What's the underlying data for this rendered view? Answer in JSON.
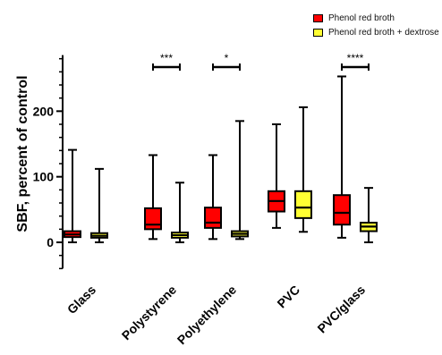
{
  "chart_data": {
    "type": "boxplot",
    "ylabel": "SBF, percent of control",
    "ylim": [
      -40,
      280
    ],
    "yticks": [
      0,
      100,
      200
    ],
    "ytick_labels": [
      "0",
      "100",
      "200"
    ],
    "categories": [
      "Glass",
      "Polystyrene",
      "Polyethylene",
      "PVC",
      "PVC/glass"
    ],
    "legend_position": "top-right",
    "series": [
      {
        "name": "Phenol red broth",
        "color": "#ff0000",
        "boxes": [
          {
            "min": 0,
            "q1": 8,
            "median": 12,
            "q3": 17,
            "max": 141
          },
          {
            "min": 5,
            "q1": 20,
            "median": 27,
            "q3": 52,
            "max": 133
          },
          {
            "min": 5,
            "q1": 22,
            "median": 30,
            "q3": 53,
            "max": 133
          },
          {
            "min": 22,
            "q1": 47,
            "median": 63,
            "q3": 78,
            "max": 180
          },
          {
            "min": 7,
            "q1": 27,
            "median": 45,
            "q3": 72,
            "max": 253
          }
        ]
      },
      {
        "name": "Phenol red broth + dextrose",
        "color": "#ffff33",
        "boxes": [
          {
            "min": 0,
            "q1": 7,
            "median": 10,
            "q3": 14,
            "max": 112
          },
          {
            "min": 0,
            "q1": 7,
            "median": 11,
            "q3": 15,
            "max": 91
          },
          {
            "min": 5,
            "q1": 9,
            "median": 13,
            "q3": 17,
            "max": 185
          },
          {
            "min": 16,
            "q1": 37,
            "median": 53,
            "q3": 78,
            "max": 206
          },
          {
            "min": 0,
            "q1": 17,
            "median": 24,
            "q3": 30,
            "max": 83
          }
        ]
      }
    ],
    "significance": [
      {
        "category_index": 1,
        "label": "***"
      },
      {
        "category_index": 2,
        "label": "*"
      },
      {
        "category_index": 4,
        "label": "****"
      }
    ]
  }
}
